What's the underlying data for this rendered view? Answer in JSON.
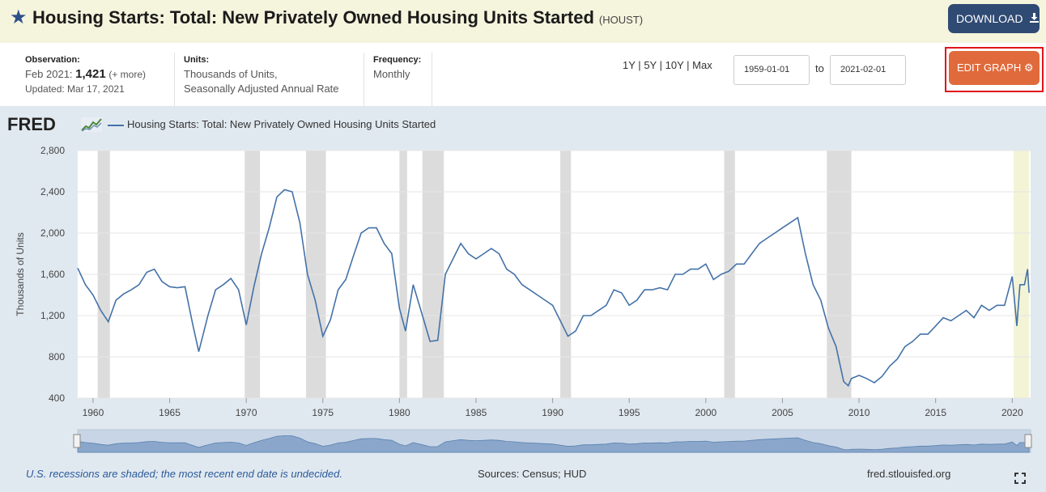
{
  "header": {
    "title": "Housing Starts: Total: New Privately Owned Housing Units Started",
    "series_code": "(HOUST)",
    "download_label": "DOWNLOAD",
    "star_icon": "star-icon",
    "download_icon": "download-icon"
  },
  "meta": {
    "observation_label": "Observation:",
    "observation_date": "Feb 2021:",
    "observation_value": "1,421",
    "observation_more": "(+ more)",
    "updated": "Updated: Mar 17, 2021",
    "units_label": "Units:",
    "units_line1": "Thousands of Units,",
    "units_line2": "Seasonally Adjusted Annual Rate",
    "frequency_label": "Frequency:",
    "frequency_value": "Monthly"
  },
  "controls": {
    "range_1y": "1Y",
    "range_5y": "5Y",
    "range_10y": "10Y",
    "range_max": "Max",
    "sep": "|",
    "start_date": "1959-01-01",
    "to_label": "to",
    "end_date": "2021-02-01",
    "edit_label": "EDIT GRAPH",
    "gear_icon": "gear-icon"
  },
  "graph": {
    "logo": "FRED",
    "legend": "Housing Starts: Total: New Privately Owned Housing Units Started",
    "footer_note": "U.S. recessions are shaded; the most recent end date is undecided.",
    "sources": "Sources: Census; HUD",
    "url": "fred.stlouisfed.org",
    "line_color": "#4472a8",
    "recession_color": "#dcdcdc",
    "current_recession_color": "#f3f3d6"
  },
  "chart_data": {
    "type": "line",
    "ylabel": "Thousands of Units",
    "ylim": [
      400,
      2800
    ],
    "yticks": [
      "2,800",
      "2,400",
      "2,000",
      "1,600",
      "1,200",
      "800",
      "400"
    ],
    "xticks": [
      "1960",
      "1965",
      "1970",
      "1975",
      "1980",
      "1985",
      "1990",
      "1995",
      "2000",
      "2005",
      "2010",
      "2015",
      "2020"
    ],
    "grid": true,
    "recessions": [
      [
        1960.3,
        1961.1
      ],
      [
        1969.9,
        1970.9
      ],
      [
        1973.9,
        1975.2
      ],
      [
        1980.0,
        1980.5
      ],
      [
        1981.5,
        1982.9
      ],
      [
        1990.5,
        1991.2
      ],
      [
        2001.2,
        2001.9
      ],
      [
        2007.9,
        2009.5
      ]
    ],
    "current_recession": [
      2020.1,
      2021.1
    ],
    "x": [
      1959.0,
      1959.5,
      1960.0,
      1960.5,
      1961.0,
      1961.5,
      1962.0,
      1962.5,
      1963.0,
      1963.5,
      1964.0,
      1964.5,
      1965.0,
      1965.5,
      1966.0,
      1966.5,
      1966.9,
      1967.5,
      1968.0,
      1968.5,
      1969.0,
      1969.5,
      1970.0,
      1970.5,
      1971.0,
      1971.5,
      1972.0,
      1972.5,
      1973.0,
      1973.5,
      1974.0,
      1974.5,
      1975.0,
      1975.5,
      1976.0,
      1976.5,
      1977.0,
      1977.5,
      1978.0,
      1978.5,
      1979.0,
      1979.5,
      1980.0,
      1980.4,
      1980.9,
      1981.5,
      1982.0,
      1982.5,
      1983.0,
      1983.5,
      1984.0,
      1984.5,
      1985.0,
      1985.5,
      1986.0,
      1986.5,
      1987.0,
      1987.5,
      1988.0,
      1988.5,
      1989.0,
      1989.5,
      1990.0,
      1990.5,
      1991.0,
      1991.5,
      1992.0,
      1992.5,
      1993.0,
      1993.5,
      1994.0,
      1994.5,
      1995.0,
      1995.5,
      1996.0,
      1996.5,
      1997.0,
      1997.5,
      1998.0,
      1998.5,
      1999.0,
      1999.5,
      2000.0,
      2000.5,
      2001.0,
      2001.5,
      2002.0,
      2002.5,
      2003.0,
      2003.5,
      2004.0,
      2004.5,
      2005.0,
      2005.5,
      2006.0,
      2006.5,
      2007.0,
      2007.5,
      2008.0,
      2008.5,
      2009.0,
      2009.3,
      2009.5,
      2010.0,
      2010.5,
      2011.0,
      2011.5,
      2012.0,
      2012.5,
      2013.0,
      2013.5,
      2014.0,
      2014.5,
      2015.0,
      2015.5,
      2016.0,
      2016.5,
      2017.0,
      2017.5,
      2018.0,
      2018.5,
      2019.0,
      2019.5,
      2020.0,
      2020.3,
      2020.5,
      2020.8,
      2021.0,
      2021.1
    ],
    "values": [
      1660,
      1500,
      1400,
      1250,
      1140,
      1350,
      1410,
      1450,
      1500,
      1620,
      1650,
      1530,
      1480,
      1470,
      1480,
      1120,
      850,
      1200,
      1450,
      1500,
      1560,
      1450,
      1110,
      1480,
      1800,
      2050,
      2350,
      2420,
      2400,
      2100,
      1600,
      1350,
      1000,
      1160,
      1450,
      1550,
      1780,
      2000,
      2050,
      2050,
      1900,
      1800,
      1270,
      1050,
      1500,
      1200,
      950,
      960,
      1600,
      1750,
      1900,
      1800,
      1750,
      1800,
      1850,
      1800,
      1650,
      1600,
      1500,
      1450,
      1400,
      1350,
      1300,
      1150,
      1000,
      1050,
      1200,
      1200,
      1250,
      1300,
      1450,
      1420,
      1300,
      1350,
      1450,
      1450,
      1470,
      1450,
      1600,
      1600,
      1650,
      1650,
      1700,
      1550,
      1600,
      1630,
      1700,
      1700,
      1800,
      1900,
      1950,
      2000,
      2050,
      2100,
      2150,
      1800,
      1500,
      1350,
      1080,
      900,
      560,
      520,
      590,
      620,
      590,
      550,
      610,
      710,
      780,
      900,
      950,
      1020,
      1020,
      1100,
      1180,
      1150,
      1200,
      1250,
      1180,
      1300,
      1250,
      1300,
      1300,
      1580,
      1100,
      1500,
      1500,
      1650,
      1421
    ]
  }
}
